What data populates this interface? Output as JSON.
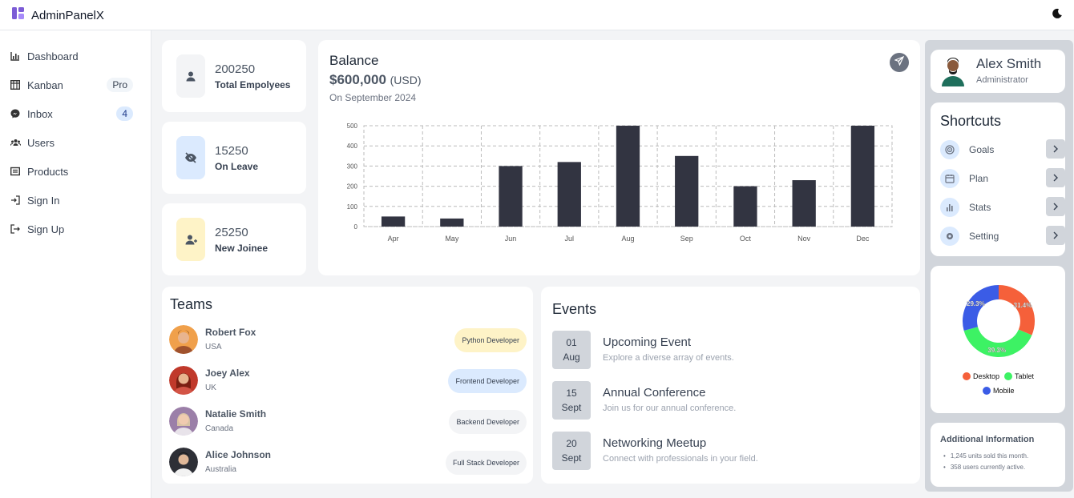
{
  "app": {
    "title": "AdminPanelX"
  },
  "sidebar": {
    "items": [
      {
        "label": "Dashboard",
        "icon": "chart-icon"
      },
      {
        "label": "Kanban",
        "icon": "kanban-icon",
        "badge": "Pro"
      },
      {
        "label": "Inbox",
        "icon": "messenger-icon",
        "badge": "4"
      },
      {
        "label": "Users",
        "icon": "users-icon"
      },
      {
        "label": "Products",
        "icon": "products-icon"
      },
      {
        "label": "Sign In",
        "icon": "sign-in-icon"
      },
      {
        "label": "Sign Up",
        "icon": "sign-up-icon"
      }
    ]
  },
  "stats": [
    {
      "value": "200250",
      "label": "Total Empolyees",
      "icon": "user-icon",
      "bg": "#f3f4f6"
    },
    {
      "value": "15250",
      "label": "On Leave",
      "icon": "eye-off-icon",
      "bg": "#dbeafe"
    },
    {
      "value": "25250",
      "label": "New Joinee",
      "icon": "user-plus-icon",
      "bg": "#fef3c7"
    }
  ],
  "balance": {
    "title": "Balance",
    "amount": "$600,000",
    "currency": "(USD)",
    "date": "On September 2024"
  },
  "chart_data": {
    "type": "bar",
    "categories": [
      "Apr",
      "May",
      "Jun",
      "Jul",
      "Aug",
      "Sep",
      "Oct",
      "Nov",
      "Dec"
    ],
    "values": [
      50,
      40,
      300,
      320,
      500,
      350,
      200,
      230,
      500
    ],
    "ylim": [
      0,
      500
    ],
    "yticks": [
      0,
      100,
      200,
      300,
      400,
      500
    ],
    "grid": true,
    "bar_color": "#323441"
  },
  "teams": {
    "title": "Teams",
    "members": [
      {
        "name": "Robert Fox",
        "country": "USA",
        "role": "Python Developer",
        "role_bg": "#fef3c7"
      },
      {
        "name": "Joey Alex",
        "country": "UK",
        "role": "Frontend Developer",
        "role_bg": "#dbeafe"
      },
      {
        "name": "Natalie Smith",
        "country": "Canada",
        "role": "Backend Developer",
        "role_bg": "#f3f4f6"
      },
      {
        "name": "Alice Johnson",
        "country": "Australia",
        "role": "Full Stack Developer",
        "role_bg": "#f3f4f6"
      }
    ]
  },
  "events": {
    "title": "Events",
    "items": [
      {
        "day": "01",
        "month": "Aug",
        "title": "Upcoming Event",
        "desc": "Explore a diverse array of events."
      },
      {
        "day": "15",
        "month": "Sept",
        "title": "Annual Conference",
        "desc": "Join us for our annual conference."
      },
      {
        "day": "20",
        "month": "Sept",
        "title": "Networking Meetup",
        "desc": "Connect with professionals in your field."
      }
    ]
  },
  "profile": {
    "name": "Alex Smith",
    "role": "Administrator"
  },
  "shortcuts": {
    "title": "Shortcuts",
    "items": [
      {
        "label": "Goals",
        "icon": "target-icon"
      },
      {
        "label": "Plan",
        "icon": "calendar-icon"
      },
      {
        "label": "Stats",
        "icon": "stats-icon"
      },
      {
        "label": "Setting",
        "icon": "settings-icon"
      }
    ]
  },
  "device_chart": {
    "type": "pie",
    "slices": [
      {
        "label": "Desktop",
        "value": 31.4,
        "text": "31.4%",
        "color": "#f5603a"
      },
      {
        "label": "Tablet",
        "value": 39.3,
        "text": "39.3%",
        "color": "#3df264"
      },
      {
        "label": "Mobile",
        "value": 29.3,
        "text": "29.3%",
        "color": "#3b5ce6"
      }
    ]
  },
  "additional_info": {
    "title": "Additional Information",
    "items": [
      "1,245 units sold this month.",
      "358 users currently active."
    ]
  }
}
